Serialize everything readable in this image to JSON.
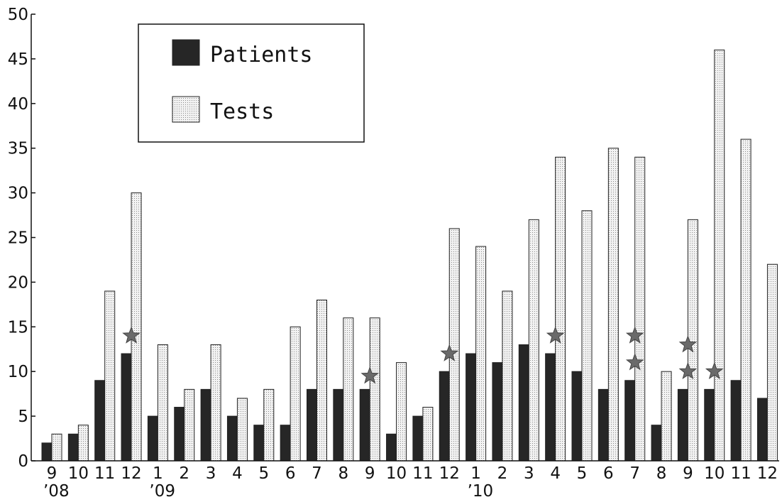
{
  "chart_data": {
    "type": "bar",
    "categories": [
      "9",
      "10",
      "11",
      "12",
      "1",
      "2",
      "3",
      "4",
      "5",
      "6",
      "7",
      "8",
      "9",
      "10",
      "11",
      "12",
      "1",
      "2",
      "3",
      "4",
      "5",
      "6",
      "7",
      "8",
      "9",
      "10",
      "11",
      "12"
    ],
    "year_labels": [
      {
        "text": "’08",
        "category_index": 0
      },
      {
        "text": "’09",
        "category_index": 4
      },
      {
        "text": "’10",
        "category_index": 16
      }
    ],
    "series": [
      {
        "name": "Patients",
        "values": [
          2,
          3,
          9,
          12,
          5,
          6,
          8,
          5,
          4,
          4,
          8,
          8,
          8,
          3,
          5,
          10,
          12,
          11,
          13,
          12,
          10,
          8,
          9,
          4,
          8,
          8,
          9,
          7
        ],
        "color": "#2a2a2a"
      },
      {
        "name": "Tests",
        "values": [
          3,
          4,
          19,
          30,
          13,
          8,
          13,
          7,
          8,
          15,
          18,
          16,
          16,
          11,
          6,
          26,
          24,
          19,
          27,
          34,
          28,
          35,
          34,
          10,
          27,
          46,
          36,
          22
        ],
        "color": "#d6d6d6"
      }
    ],
    "stars": [
      {
        "category_index": 3,
        "y": 14
      },
      {
        "category_index": 12,
        "y": 9.5
      },
      {
        "category_index": 15,
        "y": 12
      },
      {
        "category_index": 19,
        "y": 14
      },
      {
        "category_index": 22,
        "y": 14
      },
      {
        "category_index": 22,
        "y": 11
      },
      {
        "category_index": 24,
        "y": 13
      },
      {
        "category_index": 24,
        "y": 10
      },
      {
        "category_index": 25,
        "y": 10
      }
    ],
    "star_color": "#6a6a6a",
    "ylim": [
      0,
      50
    ],
    "yticks": [
      0,
      5,
      10,
      15,
      20,
      25,
      30,
      35,
      40,
      45,
      50
    ],
    "legend_position": "top-left",
    "grid": false
  }
}
